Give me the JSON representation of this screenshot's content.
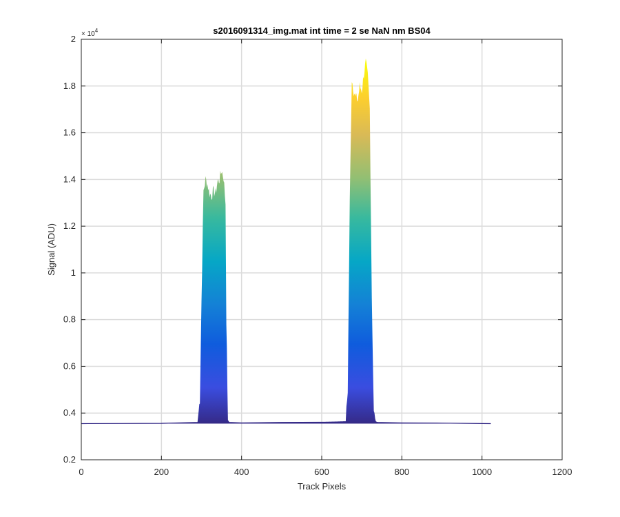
{
  "chart_data": {
    "type": "area",
    "title": "s2016091314_img.mat int time = 2 se  NaN nm BS04",
    "xlabel": "Track Pixels",
    "ylabel": "Signal (ADU)",
    "xlim": [
      0,
      1200
    ],
    "ylim": [
      2000,
      20000
    ],
    "xticks": [
      0,
      200,
      400,
      600,
      800,
      1000,
      1200
    ],
    "xtick_labels": [
      "0",
      "200",
      "400",
      "600",
      "800",
      "1000",
      "1200"
    ],
    "yticks": [
      2000,
      4000,
      6000,
      8000,
      10000,
      12000,
      14000,
      16000,
      18000,
      20000
    ],
    "ytick_labels": [
      "0.2",
      "0.4",
      "0.6",
      "0.8",
      "1",
      "1.2",
      "1.4",
      "1.6",
      "1.8",
      "2"
    ],
    "y_exponent_label": "× 10",
    "y_exponent_power": "4",
    "grid": true,
    "colormap": "parula",
    "baseline": 3550,
    "x": [
      0,
      100,
      200,
      290,
      296,
      300,
      305,
      310,
      315,
      320,
      325,
      330,
      335,
      340,
      345,
      350,
      355,
      360,
      362,
      366,
      370,
      400,
      500,
      600,
      660,
      665,
      670,
      675,
      680,
      685,
      690,
      695,
      700,
      705,
      710,
      715,
      720,
      725,
      730,
      735,
      740,
      800,
      900,
      1022
    ],
    "y": [
      3550,
      3555,
      3560,
      3600,
      4600,
      8800,
      13500,
      14000,
      13800,
      13400,
      13300,
      13500,
      13400,
      13900,
      14000,
      14400,
      14100,
      13000,
      8000,
      3700,
      3600,
      3580,
      3600,
      3620,
      3650,
      5000,
      13000,
      18300,
      17800,
      17500,
      17400,
      18000,
      17800,
      18500,
      19000,
      18400,
      17000,
      9000,
      4000,
      3650,
      3600,
      3580,
      3570,
      3550
    ]
  }
}
